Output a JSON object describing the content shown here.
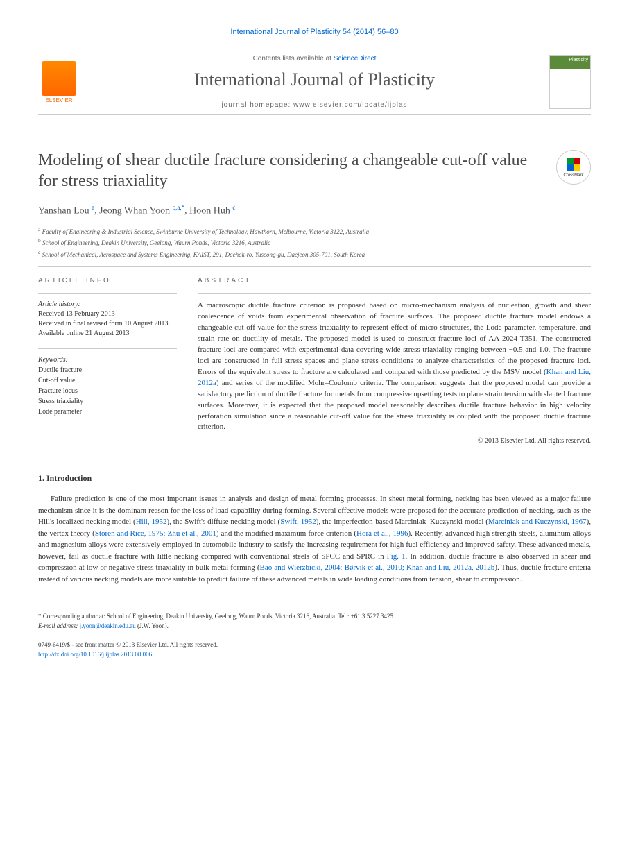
{
  "citation": "International Journal of Plasticity 54 (2014) 56–80",
  "header": {
    "contents_prefix": "Contents lists available at ",
    "contents_link": "ScienceDirect",
    "journal_name": "International Journal of Plasticity",
    "homepage_prefix": "journal homepage: ",
    "homepage_url": "www.elsevier.com/locate/ijplas",
    "publisher": "ELSEVIER",
    "cover_label": "Plasticity"
  },
  "crossmark": "CrossMark",
  "title": "Modeling of shear ductile fracture considering a changeable cut-off value for stress triaxiality",
  "authors": [
    {
      "name": "Yanshan Lou",
      "sup": "a"
    },
    {
      "name": "Jeong Whan Yoon",
      "sup": "b,a,*"
    },
    {
      "name": "Hoon Huh",
      "sup": "c"
    }
  ],
  "affiliations": [
    {
      "sup": "a",
      "text": "Faculty of Engineering & Industrial Science, Swinburne University of Technology, Hawthorn, Melbourne, Victoria 3122, Australia"
    },
    {
      "sup": "b",
      "text": "School of Engineering, Deakin University, Geelong, Waurn Ponds, Victoria 3216, Australia"
    },
    {
      "sup": "c",
      "text": "School of Mechanical, Aerospace and Systems Engineering, KAIST, 291, Daehak-ro, Yuseong-gu, Daejeon 305-701, South Korea"
    }
  ],
  "article_info": {
    "header": "ARTICLE INFO",
    "history_label": "Article history:",
    "history": "Received 13 February 2013\nReceived in final revised form 10 August 2013\nAvailable online 21 August 2013",
    "keywords_label": "Keywords:",
    "keywords": [
      "Ductile fracture",
      "Cut-off value",
      "Fracture locus",
      "Stress triaxiality",
      "Lode parameter"
    ]
  },
  "abstract": {
    "header": "ABSTRACT",
    "text_parts": [
      "A macroscopic ductile fracture criterion is proposed based on micro-mechanism analysis of nucleation, growth and shear coalescence of voids from experimental observation of fracture surfaces. The proposed ductile fracture model endows a changeable cut-off value for the stress triaxiality to represent effect of micro-structures, the Lode parameter, temperature, and strain rate on ductility of metals. The proposed model is used to construct fracture loci of AA 2024-T351. The constructed fracture loci are compared with experimental data covering wide stress triaxiality ranging between −0.5 and 1.0. The fracture loci are constructed in full stress spaces and plane stress conditions to analyze characteristics of the proposed fracture loci. Errors of the equivalent stress to fracture are calculated and compared with those predicted by the MSV model (",
      "Khan and Liu, 2012a",
      ") and series of the modified Mohr–Coulomb criteria. The comparison suggests that the proposed model can provide a satisfactory prediction of ductile fracture for metals from compressive upsetting tests to plane strain tension with slanted fracture surfaces. Moreover, it is expected that the proposed model reasonably describes ductile fracture behavior in high velocity perforation simulation since a reasonable cut-off value for the stress triaxiality is coupled with the proposed ductile fracture criterion."
    ],
    "copyright": "© 2013 Elsevier Ltd. All rights reserved."
  },
  "section1": {
    "heading": "1. Introduction",
    "para_parts": [
      "Failure prediction is one of the most important issues in analysis and design of metal forming processes. In sheet metal forming, necking has been viewed as a major failure mechanism since it is the dominant reason for the loss of load capability during forming. Several effective models were proposed for the accurate prediction of necking, such as the Hill's localized necking model (",
      "Hill, 1952",
      "), the Swift's diffuse necking model (",
      "Swift, 1952",
      "), the imperfection-based Marciniak–Kuczynski model (",
      "Marciniak and Kuczynski, 1967",
      "), the vertex theory (",
      "Stören and Rice, 1975; Zhu et al., 2001",
      ") and the modified maximum force criterion (",
      "Hora et al., 1996",
      "). Recently, advanced high strength steels, aluminum alloys and magnesium alloys were extensively employed in automobile industry to satisfy the increasing requirement for high fuel efficiency and improved safety. These advanced metals, however, fail as ductile fracture with little necking compared with conventional steels of SPCC and SPRC in ",
      "Fig. 1",
      ". In addition, ductile fracture is also observed in shear and compression at low or negative stress triaxiality in bulk metal forming (",
      "Bao and Wierzbicki, 2004; Børvik et al., 2010; Khan and Liu, 2012a, 2012b",
      "). Thus, ductile fracture criteria instead of various necking models are more suitable to predict failure of these advanced metals in wide loading conditions from tension, shear to compression."
    ]
  },
  "footnote": {
    "corresponding": "* Corresponding author at: School of Engineering, Deakin University, Geelong, Waurn Ponds, Victoria 3216, Australia. Tel.: +61 3 5227 3425.",
    "email_label": "E-mail address: ",
    "email": "j.yoon@deakin.edu.au",
    "email_suffix": " (J.W. Yoon)."
  },
  "footer": {
    "issn_line": "0749-6419/$ - see front matter © 2013 Elsevier Ltd. All rights reserved.",
    "doi": "http://dx.doi.org/10.1016/j.ijplas.2013.08.006"
  }
}
